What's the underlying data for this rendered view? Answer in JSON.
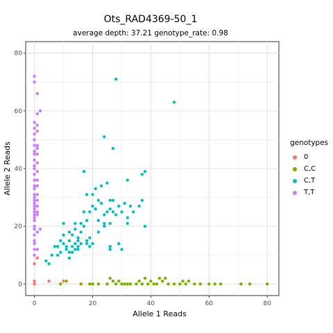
{
  "chart_data": {
    "type": "scatter",
    "title": "Ots_RAD4369-50_1",
    "subtitle": "average depth:  37.21  genotype_rate:  0.98",
    "xlabel": "Allele 1 Reads",
    "ylabel": "Allele 2 Reads",
    "xlim": [
      -3,
      84
    ],
    "ylim": [
      -4,
      84
    ],
    "x_ticks": [
      0,
      20,
      40,
      60,
      80
    ],
    "y_ticks": [
      0,
      20,
      40,
      60,
      80
    ],
    "grid": true,
    "legend_title": "genotypes",
    "legend_position": "right",
    "series": [
      {
        "name": "0",
        "color": "#F8766D",
        "points": [
          [
            0,
            0
          ],
          [
            0,
            1
          ],
          [
            0,
            7
          ],
          [
            1,
            9
          ],
          [
            5,
            1
          ],
          [
            10,
            1
          ]
        ]
      },
      {
        "name": "C,C",
        "color": "#7CAE00",
        "points": [
          [
            9,
            0
          ],
          [
            11,
            1
          ],
          [
            16,
            0
          ],
          [
            19,
            0
          ],
          [
            20,
            0
          ],
          [
            22,
            0
          ],
          [
            25,
            0
          ],
          [
            26,
            2
          ],
          [
            27,
            1
          ],
          [
            28,
            0
          ],
          [
            29,
            1
          ],
          [
            30,
            0
          ],
          [
            31,
            0
          ],
          [
            32,
            0
          ],
          [
            33,
            0
          ],
          [
            35,
            0
          ],
          [
            36,
            1
          ],
          [
            37,
            0
          ],
          [
            38,
            2
          ],
          [
            39,
            0
          ],
          [
            40,
            1
          ],
          [
            41,
            0
          ],
          [
            42,
            0
          ],
          [
            43,
            2
          ],
          [
            44,
            1
          ],
          [
            45,
            2
          ],
          [
            46,
            0
          ],
          [
            48,
            0
          ],
          [
            50,
            0
          ],
          [
            51,
            1
          ],
          [
            52,
            0
          ],
          [
            53,
            1
          ],
          [
            55,
            0
          ],
          [
            57,
            0
          ],
          [
            60,
            0
          ],
          [
            62,
            0
          ],
          [
            64,
            0
          ],
          [
            71,
            0
          ],
          [
            74,
            0
          ],
          [
            80,
            0
          ]
        ]
      },
      {
        "name": "C,T",
        "color": "#00BFC4",
        "points": [
          [
            4,
            8
          ],
          [
            5,
            7
          ],
          [
            6,
            10
          ],
          [
            7,
            13
          ],
          [
            8,
            13
          ],
          [
            8,
            10
          ],
          [
            9,
            15
          ],
          [
            9,
            11
          ],
          [
            10,
            17
          ],
          [
            10,
            21
          ],
          [
            10,
            14
          ],
          [
            11,
            13
          ],
          [
            11,
            12
          ],
          [
            12,
            11
          ],
          [
            12,
            15
          ],
          [
            12,
            18
          ],
          [
            12,
            9
          ],
          [
            13,
            11
          ],
          [
            13,
            13
          ],
          [
            13,
            17
          ],
          [
            14,
            14
          ],
          [
            14,
            19
          ],
          [
            14,
            21
          ],
          [
            14,
            12
          ],
          [
            15,
            15
          ],
          [
            15,
            16
          ],
          [
            15,
            12
          ],
          [
            15,
            13
          ],
          [
            16,
            14
          ],
          [
            16,
            18
          ],
          [
            16,
            21
          ],
          [
            17,
            20
          ],
          [
            17,
            25
          ],
          [
            17,
            39
          ],
          [
            18,
            31
          ],
          [
            18,
            14
          ],
          [
            18,
            15
          ],
          [
            18,
            22
          ],
          [
            19,
            25
          ],
          [
            19,
            16
          ],
          [
            19,
            13
          ],
          [
            20,
            14
          ],
          [
            20,
            27
          ],
          [
            20,
            31
          ],
          [
            21,
            26
          ],
          [
            21,
            33
          ],
          [
            22,
            18
          ],
          [
            22,
            22
          ],
          [
            22,
            29
          ],
          [
            23,
            28
          ],
          [
            23,
            34
          ],
          [
            24,
            51
          ],
          [
            24,
            24
          ],
          [
            24,
            21
          ],
          [
            24,
            20
          ],
          [
            25,
            25
          ],
          [
            25,
            35
          ],
          [
            26,
            29
          ],
          [
            26,
            26
          ],
          [
            26,
            21
          ],
          [
            26,
            13
          ],
          [
            26,
            12
          ],
          [
            27,
            47
          ],
          [
            27,
            29
          ],
          [
            27,
            25
          ],
          [
            28,
            71
          ],
          [
            28,
            24
          ],
          [
            29,
            27
          ],
          [
            29,
            14
          ],
          [
            30,
            25
          ],
          [
            30,
            12
          ],
          [
            31,
            28
          ],
          [
            32,
            36
          ],
          [
            32,
            21
          ],
          [
            32,
            23
          ],
          [
            33,
            27
          ],
          [
            34,
            25
          ],
          [
            36,
            27
          ],
          [
            37,
            29
          ],
          [
            37,
            38
          ],
          [
            38,
            20
          ],
          [
            38,
            39
          ],
          [
            48,
            63
          ]
        ]
      },
      {
        "name": "T,T",
        "color": "#C77CFF",
        "points": [
          [
            0,
            72
          ],
          [
            0,
            70
          ],
          [
            0,
            56
          ],
          [
            0,
            54
          ],
          [
            0,
            52
          ],
          [
            0,
            50
          ],
          [
            0,
            48
          ],
          [
            0,
            46
          ],
          [
            0,
            45
          ],
          [
            0,
            43
          ],
          [
            0,
            41
          ],
          [
            0,
            40
          ],
          [
            0,
            38
          ],
          [
            0,
            36
          ],
          [
            0,
            34
          ],
          [
            0,
            33
          ],
          [
            0,
            31
          ],
          [
            0,
            30
          ],
          [
            0,
            29
          ],
          [
            0,
            28
          ],
          [
            0,
            27
          ],
          [
            0,
            26
          ],
          [
            0,
            25
          ],
          [
            0,
            24
          ],
          [
            0,
            23
          ],
          [
            0,
            22
          ],
          [
            0,
            20
          ],
          [
            0,
            19
          ],
          [
            0,
            17
          ],
          [
            0,
            15
          ],
          [
            0,
            14
          ],
          [
            0,
            12
          ],
          [
            0,
            10
          ],
          [
            1,
            66
          ],
          [
            1,
            59
          ],
          [
            1,
            55
          ],
          [
            1,
            53
          ],
          [
            1,
            48
          ],
          [
            1,
            47
          ],
          [
            1,
            45
          ],
          [
            1,
            42
          ],
          [
            1,
            39
          ],
          [
            1,
            36
          ],
          [
            1,
            34
          ],
          [
            1,
            31
          ],
          [
            1,
            29
          ],
          [
            1,
            27
          ],
          [
            1,
            25
          ],
          [
            1,
            24
          ],
          [
            1,
            18
          ],
          [
            1,
            12
          ],
          [
            2,
            60
          ],
          [
            2,
            19
          ]
        ]
      }
    ]
  }
}
